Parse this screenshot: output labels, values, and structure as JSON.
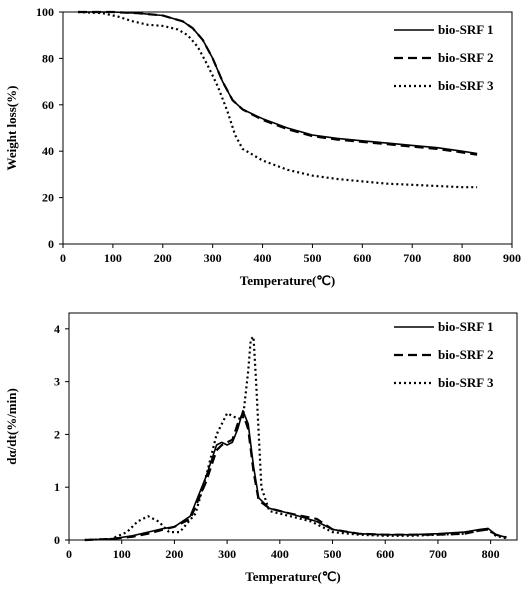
{
  "chart_data": [
    {
      "type": "line",
      "xlabel": "Temperature(℃)",
      "ylabel": "Weight loss(%)",
      "xlim": [
        0,
        900
      ],
      "ylim": [
        0,
        100
      ],
      "xticks": [
        0,
        100,
        200,
        300,
        400,
        500,
        600,
        700,
        800,
        900
      ],
      "yticks": [
        0,
        20,
        40,
        60,
        80,
        100
      ],
      "grid": false,
      "legend_position": "top-right",
      "series": [
        {
          "name": "bio-SRF 1",
          "style": "solid",
          "x": [
            30,
            100,
            150,
            200,
            240,
            260,
            280,
            300,
            320,
            340,
            360,
            400,
            450,
            500,
            550,
            600,
            650,
            700,
            750,
            800,
            830
          ],
          "y": [
            100,
            100,
            99.5,
            98.5,
            96,
            93,
            88,
            80,
            70,
            62,
            58,
            54,
            50,
            47,
            45.5,
            44.5,
            43.5,
            42.5,
            41.5,
            40,
            39
          ]
        },
        {
          "name": "bio-SRF 2",
          "style": "dashed",
          "x": [
            30,
            100,
            150,
            200,
            240,
            260,
            280,
            300,
            320,
            340,
            360,
            400,
            450,
            500,
            550,
            600,
            650,
            700,
            750,
            800,
            830
          ],
          "y": [
            100,
            100,
            99.5,
            98.5,
            96,
            93,
            88,
            80,
            70,
            62,
            58,
            53.5,
            49.5,
            46.5,
            45,
            44,
            43,
            42,
            41,
            39.5,
            38.5
          ]
        },
        {
          "name": "bio-SRF 3",
          "style": "dotted",
          "x": [
            30,
            80,
            110,
            140,
            170,
            200,
            230,
            250,
            270,
            290,
            310,
            330,
            345,
            360,
            400,
            450,
            500,
            550,
            600,
            650,
            700,
            750,
            800,
            830
          ],
          "y": [
            100,
            99.5,
            98,
            96,
            94.5,
            94,
            92.5,
            90,
            85,
            77,
            68,
            57,
            47,
            41,
            36,
            32,
            29.5,
            28,
            27,
            26,
            25.5,
            25,
            24.5,
            24.5
          ]
        }
      ]
    },
    {
      "type": "line",
      "xlabel": "Temperature(℃)",
      "ylabel": "dα/dt(%/min)",
      "xlim": [
        0,
        850
      ],
      "ylim": [
        0,
        4.3
      ],
      "xticks": [
        0,
        100,
        200,
        300,
        400,
        500,
        600,
        700,
        800
      ],
      "yticks": [
        0,
        1,
        2,
        3,
        4
      ],
      "grid": false,
      "legend_position": "top-right",
      "series": [
        {
          "name": "bio-SRF 1",
          "style": "solid",
          "x": [
            30,
            80,
            120,
            150,
            180,
            200,
            230,
            260,
            280,
            290,
            300,
            310,
            320,
            330,
            340,
            350,
            360,
            380,
            420,
            470,
            500,
            550,
            600,
            650,
            700,
            750,
            780,
            795,
            810,
            830
          ],
          "y": [
            0,
            0.02,
            0.08,
            0.15,
            0.22,
            0.25,
            0.45,
            1.2,
            1.8,
            1.85,
            1.8,
            1.85,
            2.1,
            2.45,
            2.2,
            1.4,
            0.8,
            0.6,
            0.5,
            0.35,
            0.2,
            0.12,
            0.1,
            0.1,
            0.12,
            0.15,
            0.2,
            0.22,
            0.1,
            0.05
          ]
        },
        {
          "name": "bio-SRF 2",
          "style": "dashed",
          "x": [
            30,
            80,
            120,
            150,
            180,
            200,
            230,
            260,
            280,
            290,
            300,
            310,
            320,
            330,
            340,
            350,
            360,
            380,
            420,
            470,
            500,
            550,
            600,
            650,
            700,
            750,
            780,
            795,
            810,
            830
          ],
          "y": [
            0,
            0.02,
            0.06,
            0.12,
            0.2,
            0.25,
            0.4,
            1.1,
            1.7,
            1.8,
            1.85,
            1.9,
            2.2,
            2.4,
            2.1,
            1.3,
            0.75,
            0.6,
            0.5,
            0.4,
            0.2,
            0.12,
            0.1,
            0.1,
            0.1,
            0.12,
            0.18,
            0.2,
            0.1,
            0.05
          ]
        },
        {
          "name": "bio-SRF 3",
          "style": "dotted",
          "x": [
            30,
            80,
            110,
            130,
            150,
            170,
            190,
            210,
            240,
            260,
            280,
            300,
            320,
            330,
            340,
            345,
            350,
            355,
            365,
            380,
            420,
            460,
            500,
            550,
            600,
            650,
            700,
            750,
            780,
            795,
            810,
            830
          ],
          "y": [
            0,
            0.02,
            0.15,
            0.35,
            0.45,
            0.35,
            0.15,
            0.15,
            0.5,
            1.2,
            2.0,
            2.4,
            2.3,
            2.3,
            3.2,
            3.8,
            3.85,
            3.0,
            1.0,
            0.55,
            0.45,
            0.35,
            0.15,
            0.1,
            0.08,
            0.08,
            0.1,
            0.12,
            0.18,
            0.2,
            0.08,
            0.03
          ]
        }
      ]
    }
  ]
}
